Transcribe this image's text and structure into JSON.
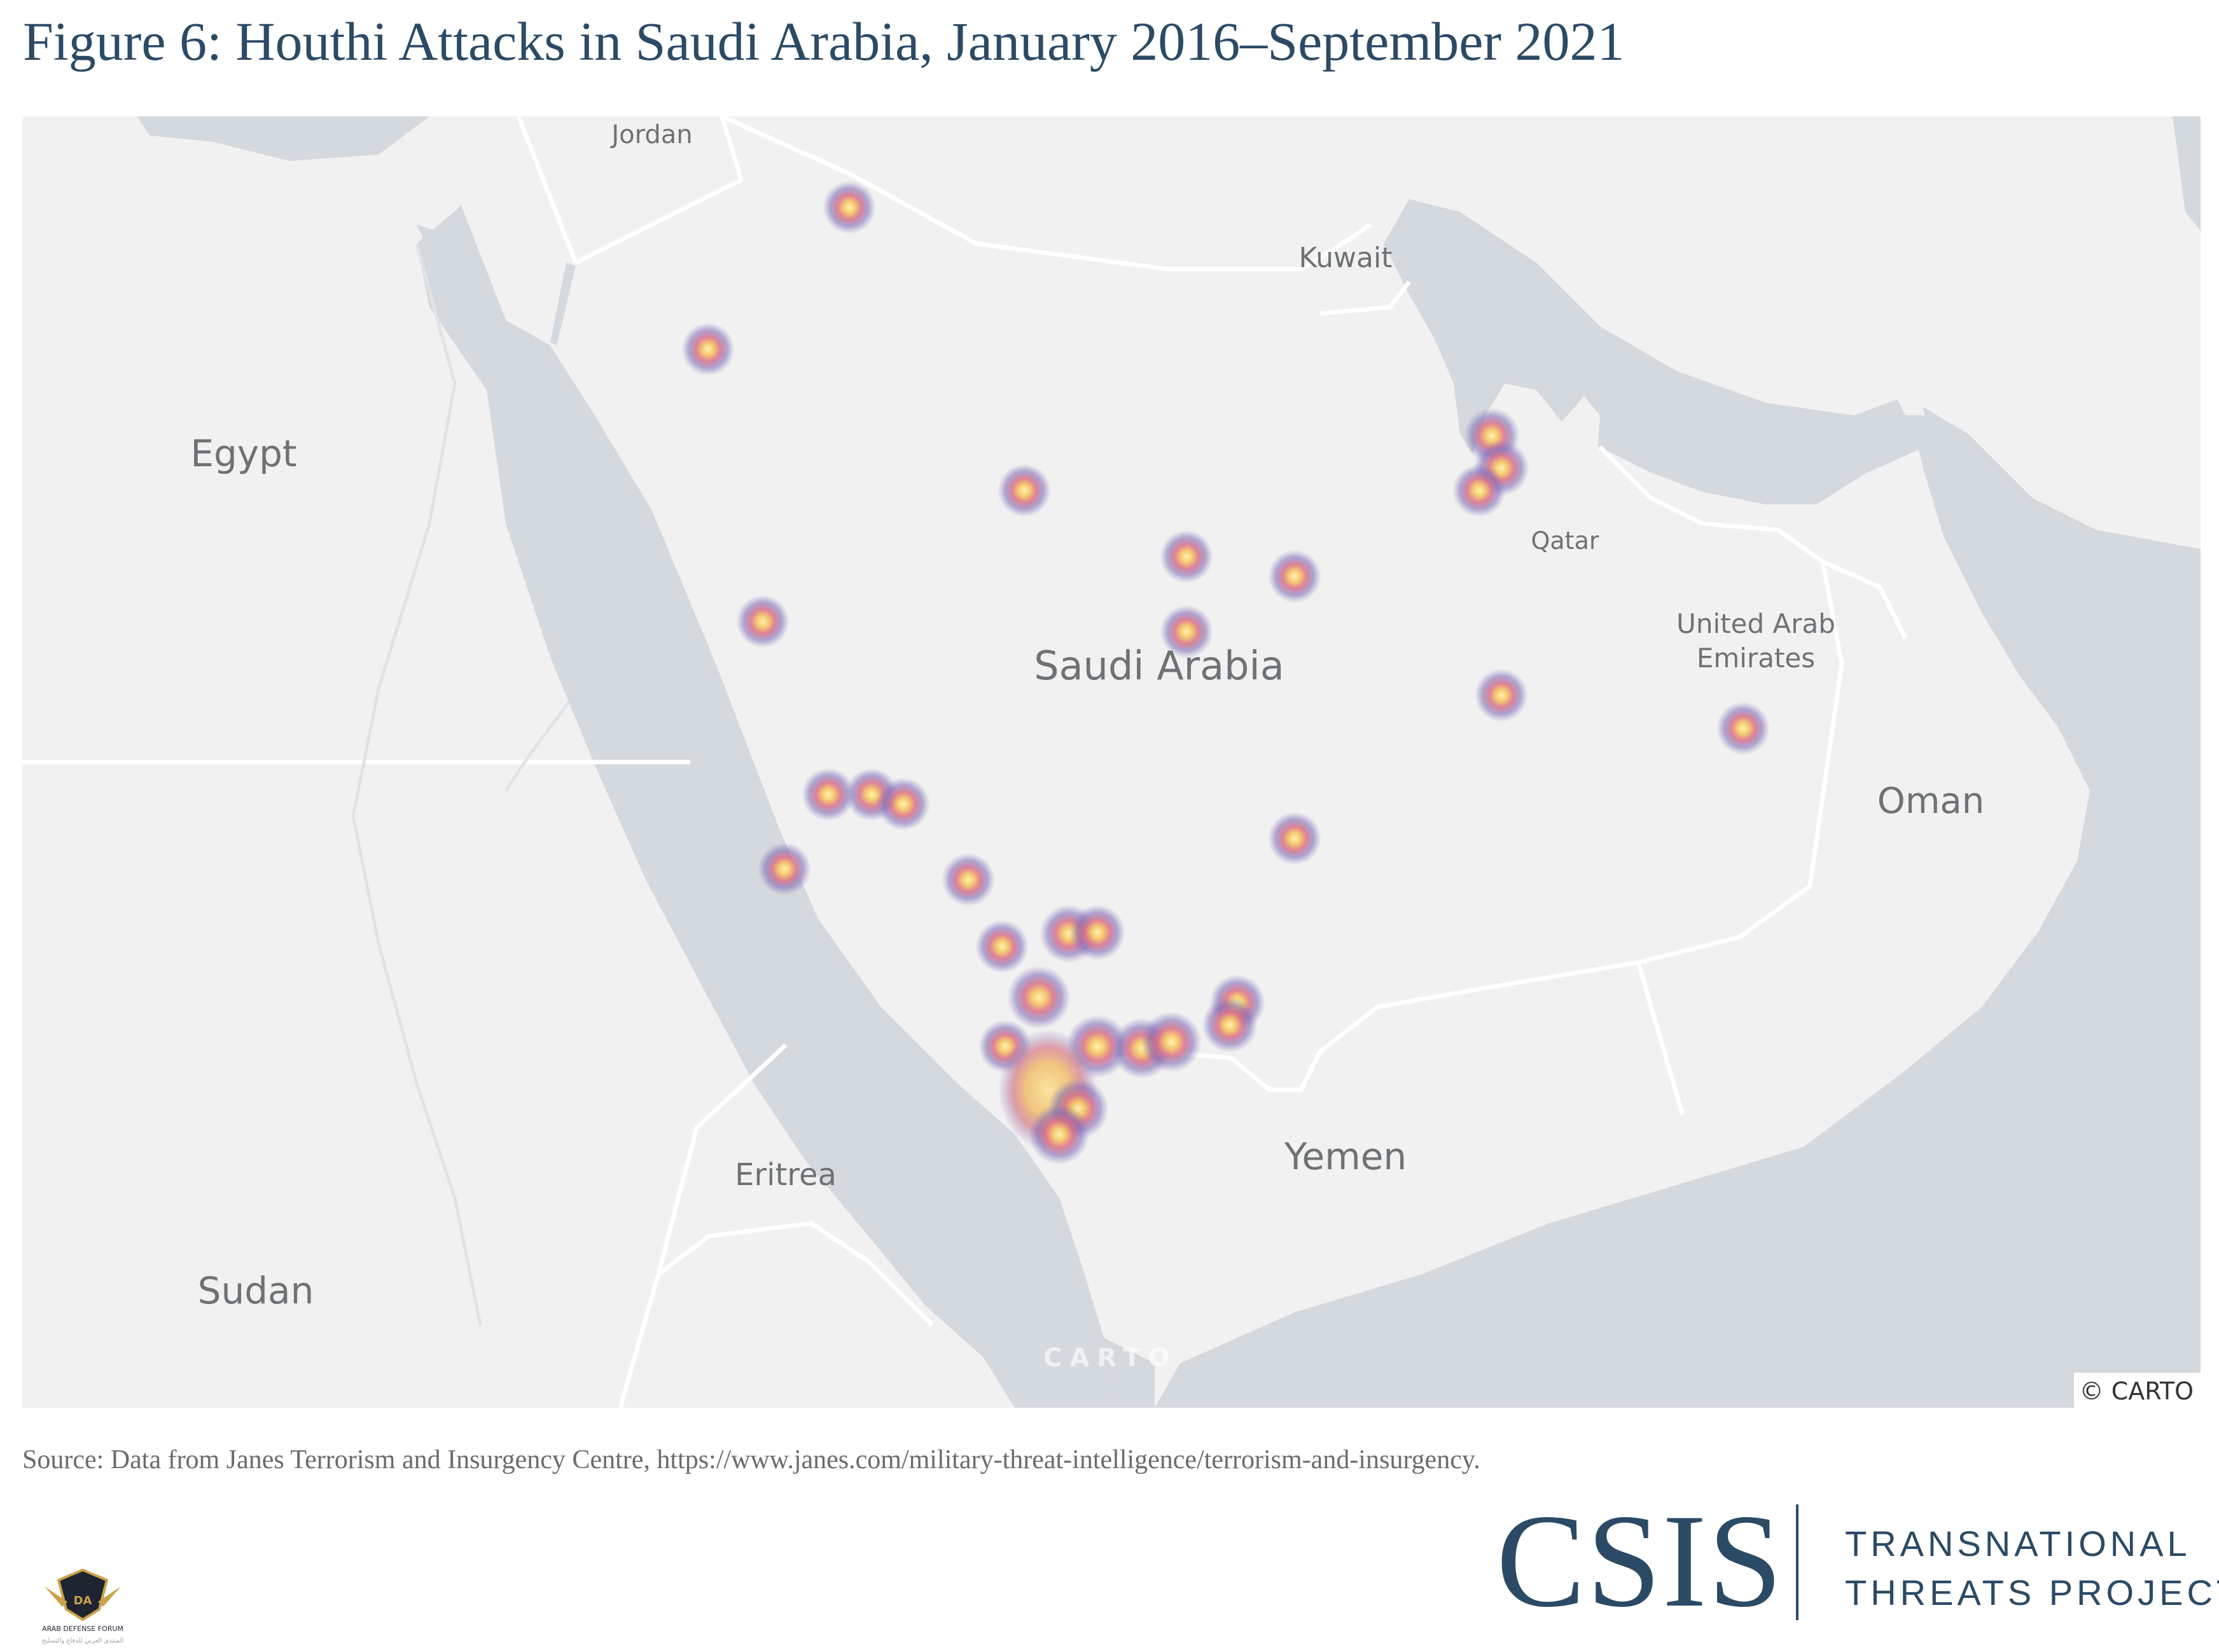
{
  "title": "Figure 6: Houthi Attacks in Saudi Arabia, January 2016–September 2021",
  "map": {
    "basemap_attribution": "© CARTO",
    "basemap_watermark": "CARTO",
    "country_labels": {
      "jordan": "Jordan",
      "kuwait": "Kuwait",
      "egypt": "Egypt",
      "qatar": "Qatar",
      "uae_line1": "United Arab",
      "uae_line2": "Emirates",
      "saudi_arabia": "Saudi Arabia",
      "oman": "Oman",
      "eritrea": "Eritrea",
      "yemen": "Yemen",
      "sudan": "Sudan"
    },
    "colors": {
      "land": "#f1f1f1",
      "water": "#d4d9de",
      "border": "#ffffff",
      "hotspot_outer": "#6c5fa8",
      "hotspot_mid": "#d4647e",
      "hotspot_core": "#f9d98a"
    },
    "heatmap": "Houthi attack locations shown as heat spots; highest density along the Saudi–Yemen border (Jizan / Najran area)"
  },
  "source": "Source: Data from Janes Terrorism and Insurgency Centre, https://www.janes.com/military-threat-intelligence/terrorism-and-insurgency.",
  "branding": {
    "org": "CSIS",
    "project_line1": "TRANSNATIONAL",
    "project_line2": "THREATS PROJECT",
    "forum_logo_text_1": "ARAB DEFENSE FORUM",
    "forum_logo_text_2": "المنتدى العربي للدفاع والتسليح"
  }
}
